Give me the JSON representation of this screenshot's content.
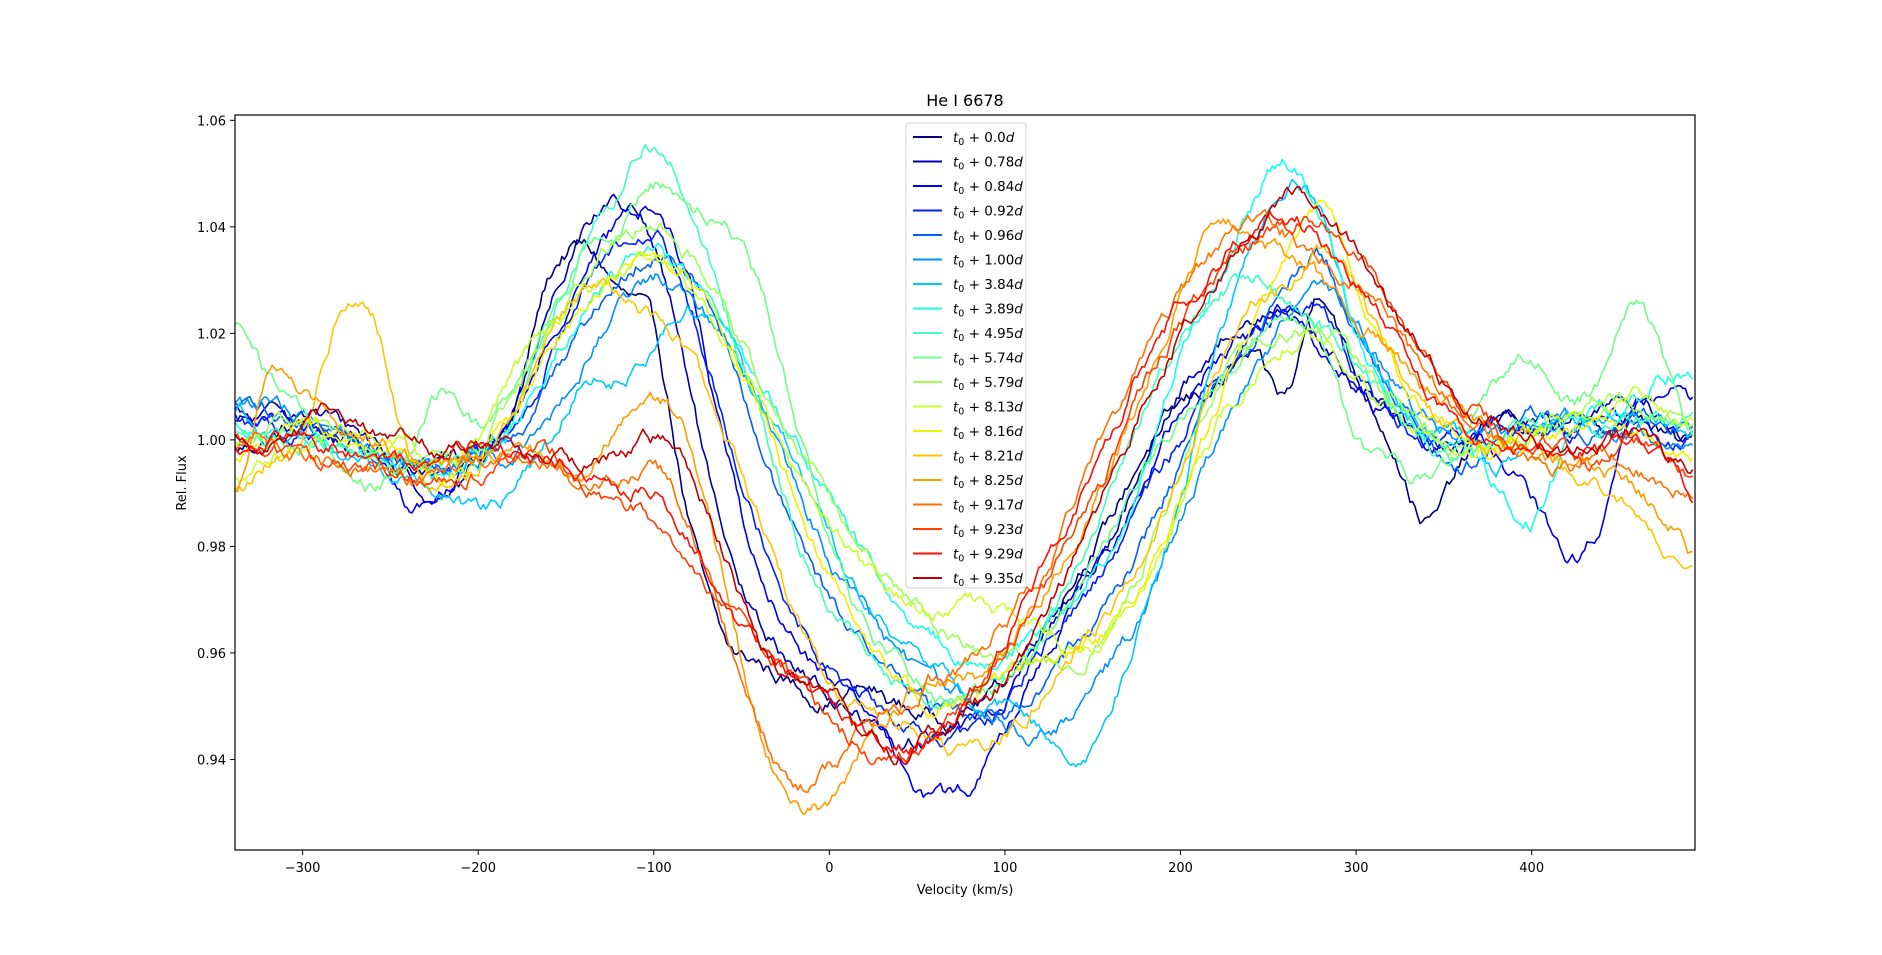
{
  "chart_data": {
    "type": "line",
    "title": "He I 6678",
    "xlabel": "Velocity (km/s)",
    "ylabel": "Rel. Flux",
    "xlim": [
      -338.5,
      493
    ],
    "ylim": [
      0.923,
      1.061
    ],
    "xticks": [
      -300,
      -200,
      -100,
      0,
      100,
      200,
      300,
      400
    ],
    "xtick_labels": [
      "−300",
      "−200",
      "−100",
      "0",
      "100",
      "200",
      "300",
      "400"
    ],
    "yticks": [
      0.94,
      0.96,
      0.98,
      1.0,
      1.02,
      1.04,
      1.06
    ],
    "ytick_labels": [
      "0.94",
      "0.96",
      "0.98",
      "1.00",
      "1.02",
      "1.04",
      "1.06"
    ],
    "grid": false,
    "legend_position": "top-center",
    "x": [
      -338,
      -320,
      -300,
      -280,
      -260,
      -240,
      -220,
      -200,
      -180,
      -160,
      -140,
      -120,
      -100,
      -80,
      -60,
      -40,
      -20,
      0,
      20,
      40,
      60,
      80,
      100,
      120,
      140,
      160,
      180,
      200,
      220,
      240,
      260,
      280,
      300,
      320,
      340,
      360,
      380,
      400,
      420,
      440,
      460,
      480,
      493
    ],
    "series": [
      {
        "name": "0.0",
        "color": "#000080",
        "values": [
          0.998,
          1.0,
          1.003,
          1.0,
          0.998,
          0.995,
          0.996,
          0.998,
          1.005,
          1.03,
          1.036,
          1.028,
          1.02,
          0.985,
          0.962,
          0.958,
          0.954,
          0.951,
          0.953,
          0.95,
          0.948,
          0.95,
          0.955,
          0.965,
          0.975,
          0.985,
          0.998,
          1.006,
          1.01,
          1.015,
          1.008,
          1.028,
          1.012,
          1.0,
          0.985,
          0.995,
          1.004,
          1.003,
          1.002,
          1.002,
          1.004,
          1.0,
          0.999
        ]
      },
      {
        "name": "0.78",
        "color": "#0000b4",
        "values": [
          1.003,
          1.004,
          1.006,
          1.003,
          1.0,
          0.993,
          0.99,
          0.996,
          1.006,
          1.025,
          1.04,
          1.045,
          1.036,
          1.01,
          0.98,
          0.965,
          0.958,
          0.952,
          0.948,
          0.943,
          0.944,
          0.946,
          0.952,
          0.962,
          0.972,
          0.982,
          0.995,
          1.008,
          1.018,
          1.022,
          1.027,
          1.018,
          1.01,
          1.005,
          0.998,
          1.0,
          1.003,
          1.002,
          1.004,
          1.006,
          1.008,
          1.003,
          1.002
        ]
      },
      {
        "name": "0.84",
        "color": "#0000ee",
        "values": [
          1.005,
          1.004,
          1.002,
          1.0,
          0.997,
          0.988,
          0.992,
          0.998,
          1.004,
          1.018,
          1.032,
          1.04,
          1.043,
          1.03,
          1.0,
          0.975,
          0.962,
          0.955,
          0.948,
          0.94,
          0.933,
          0.935,
          0.945,
          0.958,
          0.97,
          0.98,
          0.992,
          1.005,
          1.015,
          1.02,
          1.024,
          1.018,
          1.01,
          1.004,
          1.0,
          1.002,
          0.997,
          0.988,
          0.978,
          0.985,
          1.005,
          1.01,
          1.008
        ]
      },
      {
        "name": "0.92",
        "color": "#0020ff",
        "values": [
          1.004,
          1.003,
          1.001,
          1.002,
          0.999,
          0.996,
          0.994,
          0.997,
          1.002,
          1.015,
          1.03,
          1.037,
          1.04,
          1.025,
          1.005,
          0.985,
          0.968,
          0.958,
          0.952,
          0.947,
          0.943,
          0.945,
          0.95,
          0.96,
          0.968,
          0.978,
          0.99,
          1.0,
          1.012,
          1.02,
          1.024,
          1.025,
          1.012,
          1.005,
          1.0,
          0.998,
          1.004,
          1.002,
          1.001,
          1.004,
          1.003,
          1.0,
          1.001
        ]
      },
      {
        "name": "0.96",
        "color": "#0060ff",
        "values": [
          1.006,
          1.005,
          1.003,
          1.001,
          0.998,
          0.995,
          0.995,
          0.997,
          1.0,
          1.01,
          1.022,
          1.03,
          1.035,
          1.032,
          1.018,
          1.0,
          0.982,
          0.97,
          0.962,
          0.955,
          0.95,
          0.947,
          0.948,
          0.955,
          0.962,
          0.97,
          0.982,
          0.995,
          1.008,
          1.018,
          1.028,
          1.035,
          1.02,
          1.01,
          1.002,
          0.996,
          1.0,
          1.004,
          1.003,
          1.002,
          1.005,
          1.003,
          1.002
        ]
      },
      {
        "name": "1.00",
        "color": "#0090ff",
        "values": [
          1.008,
          1.006,
          1.004,
          1.0,
          0.996,
          0.994,
          0.995,
          0.997,
          0.998,
          1.005,
          1.015,
          1.025,
          1.03,
          1.028,
          1.02,
          1.008,
          0.992,
          0.978,
          0.968,
          0.96,
          0.955,
          0.95,
          0.948,
          0.945,
          0.95,
          0.958,
          0.968,
          0.985,
          1.0,
          1.012,
          1.022,
          1.03,
          1.022,
          1.012,
          1.004,
          1.0,
          1.002,
          1.002,
          1.003,
          1.0,
          1.002,
          1.0,
          1.001
        ]
      },
      {
        "name": "3.84",
        "color": "#00c8ff",
        "values": [
          1.006,
          1.002,
          0.998,
          0.996,
          0.994,
          0.993,
          0.99,
          0.986,
          0.99,
          1.0,
          1.012,
          1.012,
          1.018,
          1.025,
          1.02,
          1.008,
          0.995,
          0.982,
          0.97,
          0.962,
          0.957,
          0.952,
          0.95,
          0.945,
          0.941,
          0.95,
          0.968,
          0.99,
          1.015,
          1.035,
          1.048,
          1.042,
          1.02,
          1.01,
          1.003,
          1.0,
          0.995,
          1.0,
          1.002,
          1.003,
          1.004,
          1.002,
          1.001
        ]
      },
      {
        "name": "3.89",
        "color": "#18ffe6",
        "values": [
          1.004,
          1.002,
          1.001,
          0.999,
          0.997,
          0.996,
          0.993,
          0.995,
          1.003,
          1.015,
          1.025,
          1.032,
          1.034,
          1.03,
          1.022,
          1.012,
          1.0,
          0.99,
          0.978,
          0.968,
          0.962,
          0.958,
          0.96,
          0.964,
          0.97,
          0.98,
          0.995,
          1.015,
          1.03,
          1.045,
          1.052,
          1.04,
          1.02,
          1.008,
          1.0,
          0.998,
          0.99,
          0.985,
          0.998,
          1.004,
          1.008,
          1.012,
          1.012
        ]
      },
      {
        "name": "4.95",
        "color": "#40ffbc",
        "values": [
          1.002,
          1.001,
          1.0,
          0.998,
          0.997,
          0.996,
          0.996,
          0.998,
          1.006,
          1.02,
          1.038,
          1.048,
          1.055,
          1.045,
          1.025,
          1.005,
          0.985,
          0.97,
          0.962,
          0.955,
          0.95,
          0.952,
          0.955,
          0.963,
          0.975,
          0.99,
          1.005,
          1.02,
          1.028,
          1.03,
          1.026,
          1.022,
          1.015,
          1.008,
          1.0,
          0.997,
          1.0,
          1.004,
          1.003,
          1.002,
          1.004,
          1.003,
          1.004
        ]
      },
      {
        "name": "5.74",
        "color": "#70ff86",
        "values": [
          1.022,
          1.012,
          1.005,
          0.995,
          0.992,
          0.995,
          1.008,
          1.002,
          1.01,
          1.022,
          1.035,
          1.04,
          1.048,
          1.042,
          1.04,
          1.028,
          1.005,
          0.98,
          0.965,
          0.958,
          0.953,
          0.952,
          0.955,
          0.962,
          0.972,
          0.982,
          0.995,
          1.005,
          1.012,
          1.018,
          1.022,
          1.02,
          1.0,
          0.995,
          0.993,
          0.998,
          1.01,
          1.015,
          1.008,
          1.012,
          1.025,
          1.01,
          1.0
        ]
      },
      {
        "name": "5.79",
        "color": "#9cff5a",
        "values": [
          1.0,
          1.002,
          1.003,
          1.0,
          0.996,
          0.994,
          0.996,
          0.998,
          1.008,
          1.02,
          1.03,
          1.038,
          1.04,
          1.035,
          1.025,
          1.012,
          1.0,
          0.99,
          0.98,
          0.972,
          0.965,
          0.96,
          0.958,
          0.958,
          0.957,
          0.965,
          0.978,
          0.995,
          1.01,
          1.018,
          1.02,
          1.022,
          1.015,
          1.008,
          1.002,
          0.998,
          1.0,
          1.003,
          1.004,
          1.008,
          1.006,
          1.004,
          1.003
        ]
      },
      {
        "name": "8.13",
        "color": "#c8ff2e",
        "values": [
          0.993,
          0.997,
          1.0,
          1.002,
          1.0,
          0.998,
          0.996,
          1.0,
          1.012,
          1.022,
          1.028,
          1.032,
          1.034,
          1.028,
          1.018,
          1.008,
          0.995,
          0.985,
          0.975,
          0.97,
          0.968,
          0.97,
          0.968,
          0.965,
          0.962,
          0.965,
          0.975,
          0.988,
          1.002,
          1.012,
          1.018,
          1.02,
          1.012,
          1.005,
          1.0,
          0.998,
          1.0,
          1.002,
          1.004,
          1.006,
          1.008,
          1.005,
          1.004
        ]
      },
      {
        "name": "8.16",
        "color": "#f0f000",
        "values": [
          0.996,
          0.999,
          1.002,
          1.001,
          0.998,
          0.995,
          0.993,
          0.996,
          1.005,
          1.018,
          1.025,
          1.03,
          1.035,
          1.03,
          1.018,
          1.005,
          0.99,
          0.975,
          0.962,
          0.955,
          0.95,
          0.952,
          0.955,
          0.958,
          0.96,
          0.965,
          0.975,
          0.99,
          1.005,
          1.02,
          1.035,
          1.045,
          1.03,
          1.015,
          1.005,
          1.0,
          0.998,
          1.0,
          1.002,
          1.003,
          1.002,
          0.998,
          0.996
        ]
      },
      {
        "name": "8.21",
        "color": "#ffc400",
        "values": [
          0.99,
          0.995,
          1.0,
          1.022,
          1.023,
          0.998,
          0.992,
          0.995,
          1.005,
          1.018,
          1.027,
          1.026,
          1.022,
          1.015,
          1.0,
          0.985,
          0.968,
          0.955,
          0.95,
          0.948,
          0.944,
          0.942,
          0.945,
          0.952,
          0.96,
          0.968,
          0.98,
          0.995,
          1.012,
          1.025,
          1.03,
          1.036,
          1.028,
          1.015,
          1.005,
          1.0,
          0.998,
          1.0,
          0.995,
          0.99,
          0.985,
          0.978,
          0.978
        ]
      },
      {
        "name": "8.25",
        "color": "#ff9c00",
        "values": [
          0.99,
          1.013,
          1.008,
          1.002,
          1.0,
          0.996,
          0.995,
          0.997,
          0.998,
          0.996,
          0.993,
          1.003,
          1.007,
          1.0,
          0.975,
          0.945,
          0.933,
          0.932,
          0.943,
          0.95,
          0.955,
          0.955,
          0.96,
          0.97,
          0.982,
          0.995,
          1.01,
          1.028,
          1.04,
          1.038,
          1.035,
          1.03,
          1.022,
          1.018,
          1.01,
          1.005,
          1.0,
          0.998,
          0.995,
          0.995,
          0.99,
          0.985,
          0.978
        ]
      },
      {
        "name": "9.17",
        "color": "#ff7000",
        "values": [
          0.998,
          1.0,
          0.997,
          0.995,
          0.994,
          0.992,
          0.993,
          0.995,
          0.996,
          0.995,
          0.992,
          0.993,
          0.995,
          0.985,
          0.965,
          0.945,
          0.936,
          0.938,
          0.945,
          0.95,
          0.955,
          0.958,
          0.965,
          0.975,
          0.988,
          1.002,
          1.015,
          1.028,
          1.035,
          1.04,
          1.038,
          1.035,
          1.03,
          1.022,
          1.012,
          1.005,
          1.0,
          0.996,
          0.995,
          0.998,
          0.995,
          0.992,
          0.99
        ]
      },
      {
        "name": "9.23",
        "color": "#ff4000",
        "values": [
          1.0,
          0.998,
          0.997,
          0.995,
          0.995,
          0.994,
          0.992,
          0.994,
          0.996,
          0.998,
          0.99,
          0.988,
          0.985,
          0.975,
          0.97,
          0.962,
          0.955,
          0.948,
          0.942,
          0.94,
          0.945,
          0.952,
          0.96,
          0.97,
          0.982,
          0.995,
          1.01,
          1.022,
          1.03,
          1.036,
          1.04,
          1.04,
          1.036,
          1.025,
          1.015,
          1.008,
          1.002,
          1.0,
          0.998,
          0.995,
          1.0,
          0.996,
          0.992
        ]
      },
      {
        "name": "9.29",
        "color": "#ff1000",
        "values": [
          0.998,
          1.0,
          1.002,
          0.999,
          0.997,
          0.995,
          0.996,
          0.999,
          0.998,
          0.996,
          0.993,
          0.992,
          0.99,
          0.982,
          0.97,
          0.962,
          0.955,
          0.95,
          0.945,
          0.942,
          0.945,
          0.952,
          0.962,
          0.975,
          0.988,
          1.0,
          1.015,
          1.025,
          1.032,
          1.04,
          1.042,
          1.038,
          1.03,
          1.02,
          1.01,
          1.002,
          0.998,
          0.996,
          0.995,
          0.998,
          1.0,
          0.995,
          0.99
        ]
      },
      {
        "name": "9.35",
        "color": "#c00000",
        "values": [
          1.0,
          0.998,
          1.001,
          1.007,
          1.002,
          1.0,
          0.998,
          0.998,
          0.999,
          0.997,
          0.996,
          0.998,
          1.0,
          0.995,
          0.978,
          0.962,
          0.955,
          0.952,
          0.946,
          0.942,
          0.945,
          0.95,
          0.955,
          0.965,
          0.978,
          0.992,
          1.008,
          1.02,
          1.03,
          1.038,
          1.046,
          1.042,
          1.035,
          1.025,
          1.015,
          1.008,
          1.003,
          1.0,
          0.998,
          0.999,
          1.001,
          0.997,
          0.995
        ]
      }
    ],
    "legend_entries": [
      {
        "base": "t",
        "sub": "0",
        "rest": " + 0.0",
        "unit": "d"
      },
      {
        "base": "t",
        "sub": "0",
        "rest": " + 0.78",
        "unit": "d"
      },
      {
        "base": "t",
        "sub": "0",
        "rest": " + 0.84",
        "unit": "d"
      },
      {
        "base": "t",
        "sub": "0",
        "rest": " + 0.92",
        "unit": "d"
      },
      {
        "base": "t",
        "sub": "0",
        "rest": " + 0.96",
        "unit": "d"
      },
      {
        "base": "t",
        "sub": "0",
        "rest": " + 1.00",
        "unit": "d"
      },
      {
        "base": "t",
        "sub": "0",
        "rest": " + 3.84",
        "unit": "d"
      },
      {
        "base": "t",
        "sub": "0",
        "rest": " + 3.89",
        "unit": "d"
      },
      {
        "base": "t",
        "sub": "0",
        "rest": " + 4.95",
        "unit": "d"
      },
      {
        "base": "t",
        "sub": "0",
        "rest": " + 5.74",
        "unit": "d"
      },
      {
        "base": "t",
        "sub": "0",
        "rest": " + 5.79",
        "unit": "d"
      },
      {
        "base": "t",
        "sub": "0",
        "rest": " + 8.13",
        "unit": "d"
      },
      {
        "base": "t",
        "sub": "0",
        "rest": " + 8.16",
        "unit": "d"
      },
      {
        "base": "t",
        "sub": "0",
        "rest": " + 8.21",
        "unit": "d"
      },
      {
        "base": "t",
        "sub": "0",
        "rest": " + 8.25",
        "unit": "d"
      },
      {
        "base": "t",
        "sub": "0",
        "rest": " + 9.17",
        "unit": "d"
      },
      {
        "base": "t",
        "sub": "0",
        "rest": " + 9.23",
        "unit": "d"
      },
      {
        "base": "t",
        "sub": "0",
        "rest": " + 9.29",
        "unit": "d"
      },
      {
        "base": "t",
        "sub": "0",
        "rest": " + 9.35",
        "unit": "d"
      }
    ]
  }
}
